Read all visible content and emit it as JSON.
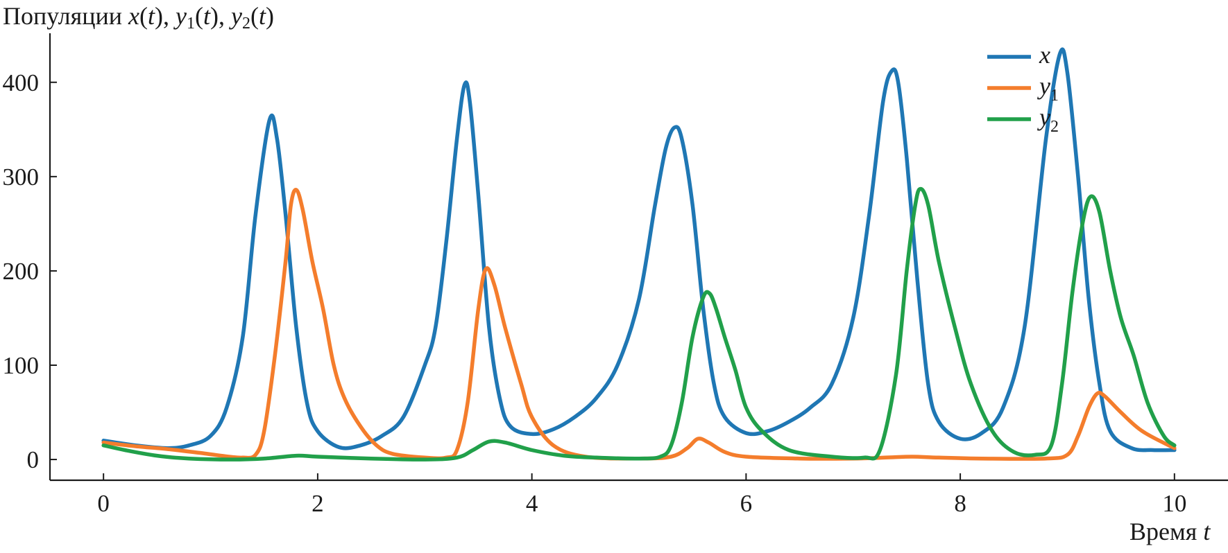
{
  "chart_data": {
    "type": "line",
    "ylabel_parts": [
      "Популяции ",
      "x",
      "(",
      "t",
      "), ",
      "y",
      "1",
      "(",
      "t",
      "), ",
      "y",
      "2",
      "(",
      "t",
      ")"
    ],
    "xlabel_parts": [
      "Время ",
      "t"
    ],
    "xlim": [
      -0.5,
      10.5
    ],
    "ylim": [
      -22,
      452
    ],
    "xticks": [
      0,
      2,
      4,
      6,
      8,
      10
    ],
    "yticks": [
      0,
      100,
      200,
      300,
      400
    ],
    "grid": false,
    "legend_position": "top-right",
    "series": [
      {
        "name": "x",
        "name_sub": "",
        "color": "#1f77b4",
        "points": [
          [
            0,
            20
          ],
          [
            0.3,
            15
          ],
          [
            0.6,
            12
          ],
          [
            0.8,
            15
          ],
          [
            1.0,
            25
          ],
          [
            1.15,
            55
          ],
          [
            1.3,
            130
          ],
          [
            1.42,
            260
          ],
          [
            1.55,
            360
          ],
          [
            1.62,
            340
          ],
          [
            1.7,
            260
          ],
          [
            1.8,
            140
          ],
          [
            1.9,
            60
          ],
          [
            2.0,
            30
          ],
          [
            2.2,
            13
          ],
          [
            2.4,
            15
          ],
          [
            2.6,
            25
          ],
          [
            2.8,
            45
          ],
          [
            3.0,
            100
          ],
          [
            3.1,
            140
          ],
          [
            3.2,
            230
          ],
          [
            3.3,
            340
          ],
          [
            3.37,
            397
          ],
          [
            3.42,
            380
          ],
          [
            3.5,
            280
          ],
          [
            3.6,
            140
          ],
          [
            3.7,
            65
          ],
          [
            3.8,
            35
          ],
          [
            4.0,
            27
          ],
          [
            4.2,
            32
          ],
          [
            4.4,
            45
          ],
          [
            4.6,
            65
          ],
          [
            4.8,
            100
          ],
          [
            5.0,
            170
          ],
          [
            5.15,
            270
          ],
          [
            5.25,
            330
          ],
          [
            5.33,
            352
          ],
          [
            5.4,
            340
          ],
          [
            5.5,
            270
          ],
          [
            5.6,
            160
          ],
          [
            5.7,
            80
          ],
          [
            5.8,
            45
          ],
          [
            6.0,
            28
          ],
          [
            6.2,
            30
          ],
          [
            6.4,
            40
          ],
          [
            6.6,
            55
          ],
          [
            6.8,
            80
          ],
          [
            7.0,
            150
          ],
          [
            7.15,
            260
          ],
          [
            7.28,
            380
          ],
          [
            7.36,
            412
          ],
          [
            7.42,
            400
          ],
          [
            7.5,
            320
          ],
          [
            7.6,
            190
          ],
          [
            7.7,
            80
          ],
          [
            7.8,
            40
          ],
          [
            8.0,
            22
          ],
          [
            8.2,
            28
          ],
          [
            8.4,
            55
          ],
          [
            8.6,
            140
          ],
          [
            8.8,
            340
          ],
          [
            8.93,
            430
          ],
          [
            9.0,
            410
          ],
          [
            9.1,
            300
          ],
          [
            9.2,
            170
          ],
          [
            9.3,
            80
          ],
          [
            9.4,
            30
          ],
          [
            9.6,
            12
          ],
          [
            9.8,
            10
          ],
          [
            10.0,
            10
          ]
        ]
      },
      {
        "name": "y",
        "name_sub": "1",
        "color": "#f47d2c",
        "points": [
          [
            0,
            18
          ],
          [
            0.3,
            14
          ],
          [
            0.6,
            11
          ],
          [
            0.9,
            7
          ],
          [
            1.1,
            4
          ],
          [
            1.3,
            2
          ],
          [
            1.42,
            5
          ],
          [
            1.5,
            30
          ],
          [
            1.6,
            110
          ],
          [
            1.7,
            210
          ],
          [
            1.75,
            270
          ],
          [
            1.8,
            286
          ],
          [
            1.86,
            265
          ],
          [
            1.95,
            210
          ],
          [
            2.05,
            160
          ],
          [
            2.15,
            100
          ],
          [
            2.25,
            65
          ],
          [
            2.4,
            35
          ],
          [
            2.55,
            15
          ],
          [
            2.7,
            6
          ],
          [
            3.0,
            2
          ],
          [
            3.2,
            2
          ],
          [
            3.3,
            10
          ],
          [
            3.4,
            60
          ],
          [
            3.5,
            160
          ],
          [
            3.57,
            202
          ],
          [
            3.65,
            185
          ],
          [
            3.75,
            140
          ],
          [
            3.9,
            80
          ],
          [
            4.0,
            45
          ],
          [
            4.2,
            15
          ],
          [
            4.5,
            3
          ],
          [
            5.0,
            1
          ],
          [
            5.3,
            3
          ],
          [
            5.45,
            12
          ],
          [
            5.55,
            22
          ],
          [
            5.65,
            18
          ],
          [
            5.8,
            8
          ],
          [
            6.0,
            3
          ],
          [
            6.5,
            1
          ],
          [
            7.0,
            1
          ],
          [
            7.3,
            2
          ],
          [
            7.55,
            3
          ],
          [
            7.8,
            2
          ],
          [
            8.2,
            1
          ],
          [
            8.8,
            1
          ],
          [
            9.0,
            5
          ],
          [
            9.1,
            25
          ],
          [
            9.2,
            55
          ],
          [
            9.28,
            70
          ],
          [
            9.35,
            67
          ],
          [
            9.5,
            50
          ],
          [
            9.7,
            30
          ],
          [
            10.0,
            12
          ]
        ]
      },
      {
        "name": "y",
        "name_sub": "2",
        "color": "#21a04a",
        "points": [
          [
            0,
            15
          ],
          [
            0.2,
            10
          ],
          [
            0.5,
            4
          ],
          [
            0.8,
            1
          ],
          [
            1.2,
            0
          ],
          [
            1.5,
            1
          ],
          [
            1.8,
            4
          ],
          [
            2.0,
            3
          ],
          [
            2.5,
            1
          ],
          [
            3.0,
            0
          ],
          [
            3.3,
            2
          ],
          [
            3.45,
            10
          ],
          [
            3.6,
            19
          ],
          [
            3.75,
            18
          ],
          [
            4.0,
            10
          ],
          [
            4.3,
            4
          ],
          [
            4.6,
            2
          ],
          [
            5.0,
            1
          ],
          [
            5.2,
            3
          ],
          [
            5.3,
            15
          ],
          [
            5.4,
            60
          ],
          [
            5.5,
            130
          ],
          [
            5.6,
            172
          ],
          [
            5.66,
            176
          ],
          [
            5.72,
            160
          ],
          [
            5.8,
            130
          ],
          [
            5.9,
            95
          ],
          [
            6.0,
            55
          ],
          [
            6.15,
            30
          ],
          [
            6.4,
            10
          ],
          [
            6.8,
            3
          ],
          [
            7.1,
            2
          ],
          [
            7.25,
            10
          ],
          [
            7.4,
            90
          ],
          [
            7.5,
            200
          ],
          [
            7.58,
            270
          ],
          [
            7.63,
            287
          ],
          [
            7.7,
            270
          ],
          [
            7.8,
            210
          ],
          [
            7.95,
            140
          ],
          [
            8.1,
            80
          ],
          [
            8.3,
            30
          ],
          [
            8.5,
            8
          ],
          [
            8.7,
            5
          ],
          [
            8.85,
            15
          ],
          [
            8.95,
            80
          ],
          [
            9.05,
            180
          ],
          [
            9.15,
            255
          ],
          [
            9.22,
            279
          ],
          [
            9.3,
            262
          ],
          [
            9.4,
            200
          ],
          [
            9.5,
            150
          ],
          [
            9.62,
            110
          ],
          [
            9.75,
            60
          ],
          [
            9.9,
            25
          ],
          [
            10.0,
            15
          ]
        ]
      }
    ]
  }
}
